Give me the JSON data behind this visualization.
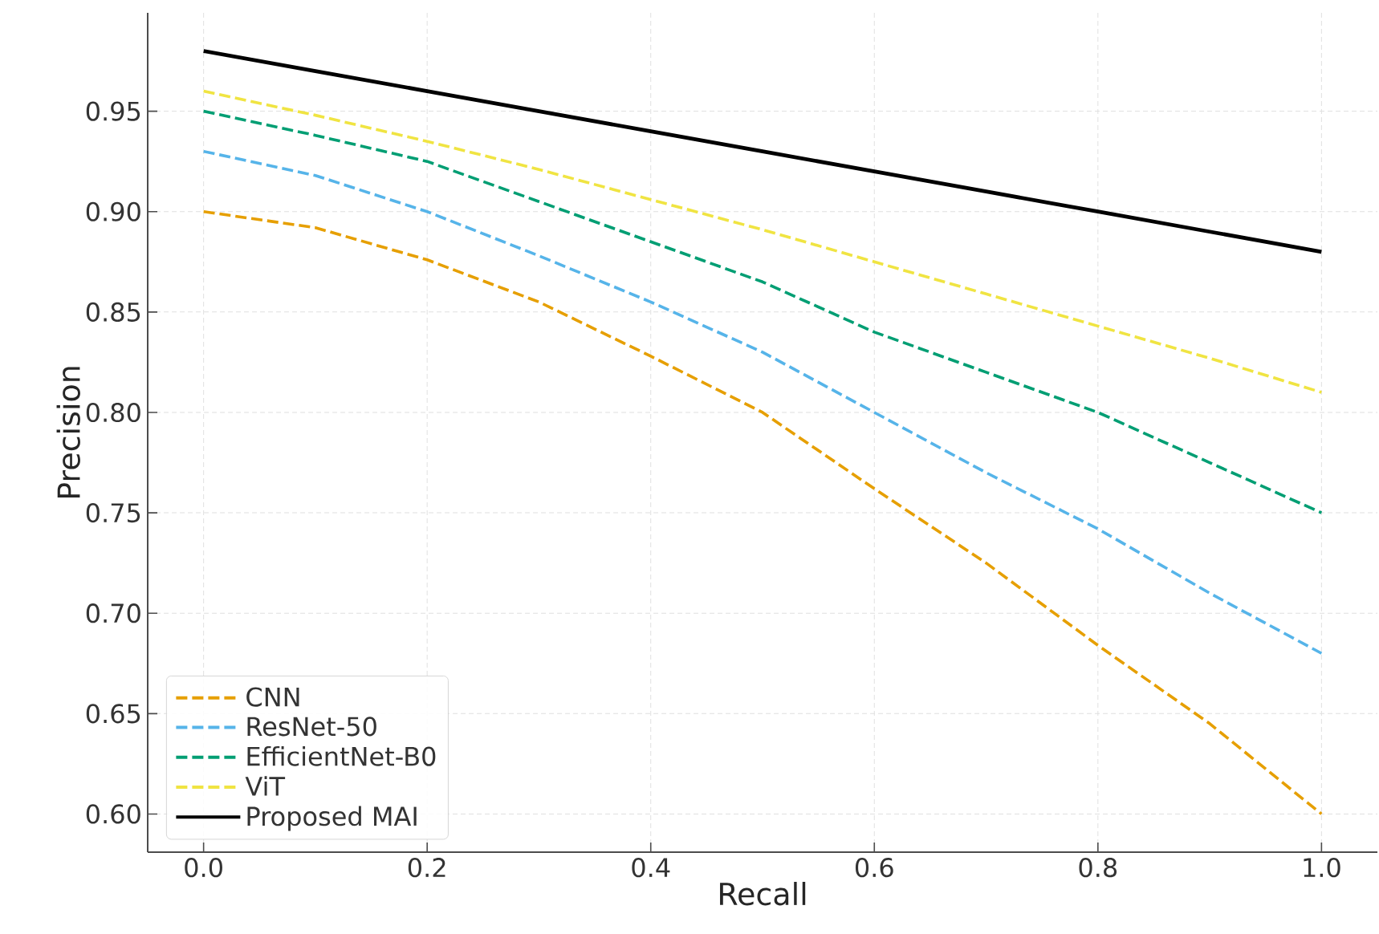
{
  "chart_data": {
    "type": "line",
    "xlabel": "Recall",
    "ylabel": "Precision",
    "xlim": [
      -0.05,
      1.05
    ],
    "ylim": [
      0.581,
      0.999
    ],
    "xticks": [
      {
        "value": 0,
        "label": "0.0"
      },
      {
        "value": 0.2,
        "label": "0.2"
      },
      {
        "value": 0.4,
        "label": "0.4"
      },
      {
        "value": 0.6,
        "label": "0.6"
      },
      {
        "value": 0.8,
        "label": "0.8"
      },
      {
        "value": 1,
        "label": "1.0"
      }
    ],
    "yticks": [
      {
        "value": 0.6,
        "label": "0.60"
      },
      {
        "value": 0.65,
        "label": "0.65"
      },
      {
        "value": 0.7,
        "label": "0.70"
      },
      {
        "value": 0.75,
        "label": "0.75"
      },
      {
        "value": 0.8,
        "label": "0.80"
      },
      {
        "value": 0.85,
        "label": "0.85"
      },
      {
        "value": 0.9,
        "label": "0.90"
      },
      {
        "value": 0.95,
        "label": "0.95"
      }
    ],
    "x": [
      0,
      0.1,
      0.2,
      0.3,
      0.4,
      0.5,
      0.6,
      0.7,
      0.8,
      0.9,
      1.0
    ],
    "grid": true,
    "legend": "bottom left",
    "marker": "none",
    "series": [
      {
        "name": "CNN",
        "color": "#e69f00",
        "line_style": "dashed",
        "values": [
          0.9,
          0.892,
          0.876,
          0.855,
          0.828,
          0.8,
          0.762,
          0.725,
          0.684,
          0.645,
          0.6
        ]
      },
      {
        "name": "ResNet-50",
        "color": "#56b4e9",
        "line_style": "dashed",
        "values": [
          0.93,
          0.918,
          0.9,
          0.878,
          0.855,
          0.83,
          0.8,
          0.77,
          0.742,
          0.71,
          0.68
        ]
      },
      {
        "name": "EfficientNet-B0",
        "color": "#009e73",
        "line_style": "dashed",
        "values": [
          0.95,
          0.938,
          0.925,
          0.905,
          0.885,
          0.865,
          0.84,
          0.82,
          0.8,
          0.775,
          0.75
        ]
      },
      {
        "name": "ViT",
        "color": "#f0e442",
        "line_style": "dashed",
        "values": [
          0.96,
          0.948,
          0.935,
          0.921,
          0.906,
          0.891,
          0.875,
          0.859,
          0.843,
          0.827,
          0.81
        ]
      },
      {
        "name": "Proposed MAI",
        "color": "#000000",
        "line_style": "solid",
        "values": [
          0.98,
          0.97,
          0.96,
          0.95,
          0.94,
          0.93,
          0.92,
          0.91,
          0.9,
          0.89,
          0.88
        ]
      }
    ]
  }
}
